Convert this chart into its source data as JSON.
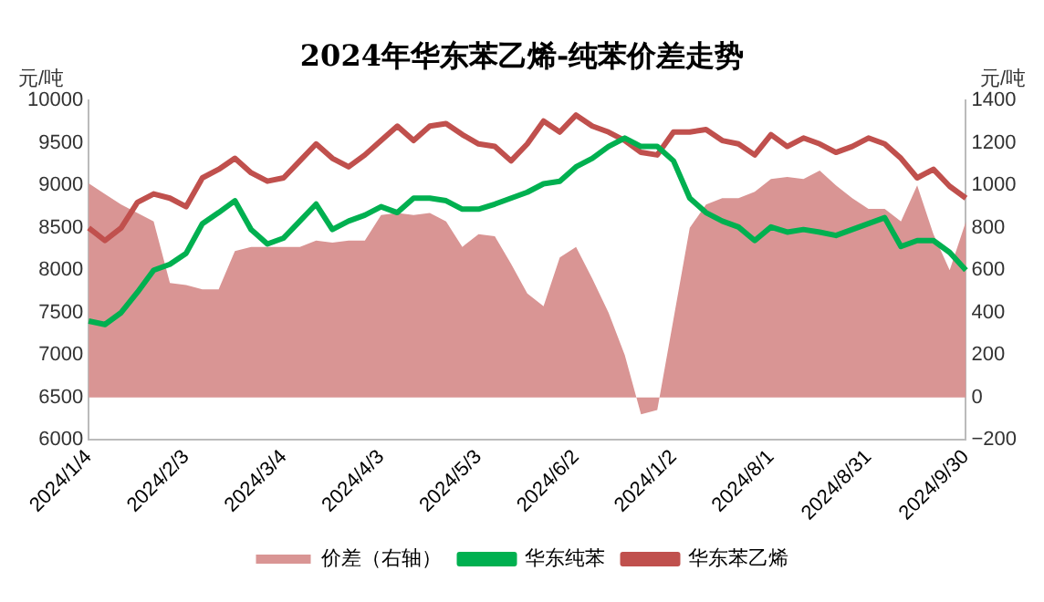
{
  "chart_data": {
    "type": "line",
    "title": "2024年华东苯乙烯-纯苯价差走势",
    "ylabel": "元/吨",
    "y2label": "元/吨",
    "categories": [
      "2024/1/4",
      null,
      null,
      null,
      null,
      null,
      "2024/2/3",
      null,
      null,
      null,
      null,
      null,
      "2024/3/4",
      null,
      null,
      null,
      null,
      null,
      "2024/4/3",
      null,
      null,
      null,
      null,
      null,
      "2024/5/3",
      null,
      null,
      null,
      null,
      null,
      "2024/6/2",
      null,
      null,
      null,
      null,
      null,
      "2024/1/2",
      null,
      null,
      null,
      null,
      null,
      "2024/8/1",
      null,
      null,
      null,
      null,
      null,
      "2024/8/31",
      null,
      null,
      null,
      null,
      null,
      "2024/9/30"
    ],
    "series": [
      {
        "name": "价差（右轴）",
        "type": "area",
        "axis": "y2",
        "color": "#d99594",
        "values": [
          1010,
          960,
          910,
          870,
          830,
          540,
          530,
          510,
          510,
          690,
          710,
          710,
          710,
          710,
          740,
          730,
          740,
          740,
          860,
          870,
          860,
          870,
          830,
          710,
          770,
          760,
          630,
          490,
          430,
          660,
          710,
          560,
          400,
          200,
          -80,
          -60,
          370,
          800,
          910,
          940,
          940,
          970,
          1030,
          1040,
          1030,
          1070,
          1000,
          940,
          890,
          890,
          830,
          1000,
          770,
          600,
          830
        ]
      },
      {
        "name": "华东纯苯",
        "type": "line",
        "color": "#00b050",
        "values": [
          7400,
          7360,
          7500,
          7740,
          8000,
          8070,
          8200,
          8550,
          8680,
          8820,
          8480,
          8310,
          8380,
          8580,
          8780,
          8480,
          8580,
          8650,
          8750,
          8680,
          8850,
          8850,
          8820,
          8720,
          8720,
          8780,
          8850,
          8920,
          9020,
          9050,
          9220,
          9320,
          9460,
          9560,
          9460,
          9460,
          9290,
          8850,
          8680,
          8580,
          8510,
          8350,
          8510,
          8450,
          8480,
          8450,
          8410,
          8480,
          8550,
          8620,
          8280,
          8350,
          8350,
          8210,
          8000
        ]
      },
      {
        "name": "华东苯乙烯",
        "type": "line",
        "color": "#c0504d",
        "values": [
          8500,
          8350,
          8500,
          8800,
          8900,
          8850,
          8750,
          9090,
          9190,
          9320,
          9150,
          9050,
          9090,
          9290,
          9490,
          9320,
          9220,
          9360,
          9530,
          9700,
          9530,
          9700,
          9730,
          9600,
          9490,
          9460,
          9290,
          9490,
          9760,
          9630,
          9830,
          9700,
          9630,
          9530,
          9390,
          9360,
          9630,
          9630,
          9660,
          9530,
          9490,
          9360,
          9600,
          9460,
          9560,
          9490,
          9390,
          9460,
          9560,
          9490,
          9320,
          9090,
          9190,
          8990,
          8850
        ]
      }
    ],
    "ylim": [
      6000,
      10000
    ],
    "yticks": [
      6000,
      6500,
      7000,
      7500,
      8000,
      8500,
      9000,
      9500,
      10000
    ],
    "y2lim": [
      -200,
      1400
    ],
    "y2ticks": [
      {
        "value": -200,
        "label": "−200"
      },
      0,
      200,
      400,
      600,
      800,
      1000,
      1200,
      1400
    ],
    "grid": false,
    "legend": "bottom",
    "marker": "none",
    "line_style": "solid"
  }
}
